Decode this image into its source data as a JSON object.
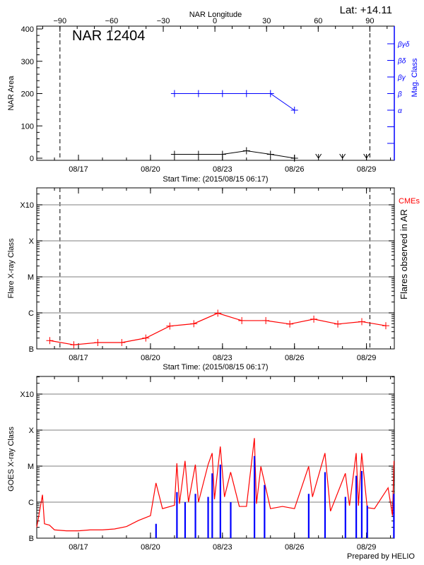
{
  "header": {
    "lat_label": "Lat: +14.11",
    "footer": "Prepared by HELIO"
  },
  "chart_data": [
    {
      "type": "line",
      "title": "NAR 12404",
      "xlabel": "Start Time: (2015/08/15 06:17)",
      "xlim": [
        "2015-08-15 06:17",
        "2015-08-30 03:50"
      ],
      "x_tick_labels": [
        "08/17",
        "08/20",
        "08/23",
        "08/26",
        "08/29"
      ],
      "top_axis": {
        "label": "NAR Longitude",
        "ticks": [
          -90,
          -60,
          -30,
          0,
          30,
          60,
          90
        ]
      },
      "limb_longitudes": [
        -90,
        90
      ],
      "ylabel": "NAR Area",
      "ylim": [
        0,
        400
      ],
      "y_ticks": [
        0,
        100,
        200,
        300,
        400
      ],
      "right_axis": {
        "label": "Mag. Class",
        "color": "#0000ff",
        "categories": [
          "α",
          "β",
          "βγ",
          "βδ",
          "βγδ"
        ]
      },
      "series": [
        {
          "color": "#000000",
          "axis": "left",
          "points": [
            {
              "x": "2015-08-21 00:00",
              "y": 12
            },
            {
              "x": "2015-08-22 00:00",
              "y": 12
            },
            {
              "x": "2015-08-23 00:00",
              "y": 12
            },
            {
              "x": "2015-08-24 00:00",
              "y": 23
            },
            {
              "x": "2015-08-25 00:00",
              "y": 12
            },
            {
              "x": "2015-08-26 00:00",
              "y": 0
            }
          ]
        },
        {
          "color": "#0000ff",
          "axis": "right",
          "points": [
            {
              "x": "2015-08-21 00:00",
              "y": "β"
            },
            {
              "x": "2015-08-22 00:00",
              "y": "β"
            },
            {
              "x": "2015-08-23 00:00",
              "y": "β"
            },
            {
              "x": "2015-08-24 00:00",
              "y": "β"
            },
            {
              "x": "2015-08-25 00:00",
              "y": "β"
            },
            {
              "x": "2015-08-26 00:00",
              "y": "α"
            }
          ]
        }
      ],
      "no_data_markers": [
        "2015-08-27 00:00",
        "2015-08-28 00:00",
        "2015-08-29 00:00"
      ]
    },
    {
      "type": "line",
      "xlabel": "Start Time: (2015/08/15 06:17)",
      "xlim": [
        "2015-08-15 06:17",
        "2015-08-30 03:50"
      ],
      "x_tick_labels": [
        "08/17",
        "08/20",
        "08/23",
        "08/26",
        "08/29"
      ],
      "limb_longitudes": [
        -90,
        90
      ],
      "ylabel": "Flare X-ray Class",
      "y_scale": "log",
      "y_ticks": [
        "B",
        "C",
        "M",
        "X",
        "X10"
      ],
      "grid": true,
      "right_label": "Flares observed in AR",
      "legend": {
        "label": "CMEs",
        "color": "#ff0000",
        "position": "top-right"
      },
      "series": [
        {
          "color": "#ff0000",
          "points": [
            {
              "x": "2015-08-15 19:20",
              "y": "B1.7"
            },
            {
              "x": "2015-08-16 19:20",
              "y": "B1.3"
            },
            {
              "x": "2015-08-17 19:20",
              "y": "B1.5"
            },
            {
              "x": "2015-08-18 19:20",
              "y": "B1.5"
            },
            {
              "x": "2015-08-19 19:20",
              "y": "B2.0"
            },
            {
              "x": "2015-08-20 19:20",
              "y": "B4.3"
            },
            {
              "x": "2015-08-21 19:20",
              "y": "B5.0"
            },
            {
              "x": "2015-08-22 19:20",
              "y": "B9.8"
            },
            {
              "x": "2015-08-23 19:20",
              "y": "B6.1"
            },
            {
              "x": "2015-08-24 19:20",
              "y": "B6.1"
            },
            {
              "x": "2015-08-25 19:20",
              "y": "B4.9"
            },
            {
              "x": "2015-08-26 19:20",
              "y": "B6.7"
            },
            {
              "x": "2015-08-27 19:20",
              "y": "B4.9"
            },
            {
              "x": "2015-08-28 19:20",
              "y": "B5.7"
            },
            {
              "x": "2015-08-29 19:20",
              "y": "B4.4"
            }
          ]
        }
      ]
    },
    {
      "type": "line",
      "xlim": [
        "2015-08-15 06:17",
        "2015-08-30 03:50"
      ],
      "x_tick_labels": [
        "08/17",
        "08/20",
        "08/23",
        "08/26",
        "08/29"
      ],
      "ylabel": "GOES X-ray Class",
      "y_scale": "log",
      "y_ticks": [
        "B",
        "C",
        "M",
        "X",
        "X10"
      ],
      "grid": true,
      "series": [
        {
          "color": "#ff0000",
          "style": "line",
          "points": [
            {
              "x": "2015-08-15 06:17",
              "y": "B2.0"
            },
            {
              "x": "2015-08-15 12:00",
              "y": "C1.6"
            },
            {
              "x": "2015-08-15 14:00",
              "y": "B2.5"
            },
            {
              "x": "2015-08-15 19:00",
              "y": "B2.3"
            },
            {
              "x": "2015-08-16 00:00",
              "y": "B1.7"
            },
            {
              "x": "2015-08-16 12:00",
              "y": "B1.6"
            },
            {
              "x": "2015-08-17 00:00",
              "y": "B1.6"
            },
            {
              "x": "2015-08-17 12:00",
              "y": "B1.7"
            },
            {
              "x": "2015-08-18 00:00",
              "y": "B1.7"
            },
            {
              "x": "2015-08-18 12:00",
              "y": "B1.8"
            },
            {
              "x": "2015-08-19 00:00",
              "y": "B2.1"
            },
            {
              "x": "2015-08-19 12:00",
              "y": "B3.1"
            },
            {
              "x": "2015-08-20 00:00",
              "y": "B4.2"
            },
            {
              "x": "2015-08-20 05:30",
              "y": "C3.4"
            },
            {
              "x": "2015-08-20 12:00",
              "y": "B6.6"
            },
            {
              "x": "2015-08-21 00:00",
              "y": "B8.2"
            },
            {
              "x": "2015-08-21 02:24",
              "y": "M1.2"
            },
            {
              "x": "2015-08-21 05:00",
              "y": "B9.0"
            },
            {
              "x": "2015-08-21 10:34",
              "y": "M1.4"
            },
            {
              "x": "2015-08-21 14:00",
              "y": "C1.0"
            },
            {
              "x": "2015-08-21 20:53",
              "y": "M1.1"
            },
            {
              "x": "2015-08-22 00:00",
              "y": "C1.0"
            },
            {
              "x": "2015-08-22 09:36",
              "y": "M1.1"
            },
            {
              "x": "2015-08-22 13:41",
              "y": "M2.3"
            },
            {
              "x": "2015-08-22 16:00",
              "y": "C1.2"
            },
            {
              "x": "2015-08-22 21:50",
              "y": "M3.5"
            },
            {
              "x": "2015-08-23 02:00",
              "y": "C1.4"
            },
            {
              "x": "2015-08-23 08:10",
              "y": "C6.8"
            },
            {
              "x": "2015-08-23 16:48",
              "y": "B7.6"
            },
            {
              "x": "2015-08-24 00:00",
              "y": "B7.6"
            },
            {
              "x": "2015-08-24 07:55",
              "y": "M6.0"
            },
            {
              "x": "2015-08-24 10:00",
              "y": "B9.0"
            },
            {
              "x": "2015-08-24 14:24",
              "y": "C9.8"
            },
            {
              "x": "2015-08-25 00:00",
              "y": "B6.6"
            },
            {
              "x": "2015-08-25 12:00",
              "y": "B7.6"
            },
            {
              "x": "2015-08-26 00:00",
              "y": "B6.6"
            },
            {
              "x": "2015-08-26 14:10",
              "y": "C9.8"
            },
            {
              "x": "2015-08-26 18:00",
              "y": "C1.4"
            },
            {
              "x": "2015-08-27 06:29",
              "y": "M2.3"
            },
            {
              "x": "2015-08-27 12:00",
              "y": "B5.6"
            },
            {
              "x": "2015-08-28 02:53",
              "y": "C6.3"
            },
            {
              "x": "2015-08-28 07:00",
              "y": "B8.0"
            },
            {
              "x": "2015-08-28 13:41",
              "y": "M2.3"
            },
            {
              "x": "2015-08-28 16:00",
              "y": "B8.0"
            },
            {
              "x": "2015-08-28 19:12",
              "y": "M2.3"
            },
            {
              "x": "2015-08-29 00:43",
              "y": "B7.0"
            },
            {
              "x": "2015-08-29 08:00",
              "y": "B6.6"
            },
            {
              "x": "2015-08-29 21:36",
              "y": "C2.5"
            },
            {
              "x": "2015-08-30 02:00",
              "y": "B4.2"
            },
            {
              "x": "2015-08-30 03:30",
              "y": "M1.4"
            }
          ]
        },
        {
          "color": "#0000ff",
          "style": "bars",
          "points": [
            {
              "x": "2015-08-20 05:30",
              "y": "B2.5"
            },
            {
              "x": "2015-08-21 02:24",
              "y": "C1.9"
            },
            {
              "x": "2015-08-21 10:34",
              "y": "C1.0"
            },
            {
              "x": "2015-08-21 20:53",
              "y": "C1.7"
            },
            {
              "x": "2015-08-22 09:36",
              "y": "C1.4"
            },
            {
              "x": "2015-08-22 13:41",
              "y": "C6.3"
            },
            {
              "x": "2015-08-22 21:50",
              "y": "M1.1"
            },
            {
              "x": "2015-08-23 08:10",
              "y": "C1.0"
            },
            {
              "x": "2015-08-24 07:55",
              "y": "M1.9"
            },
            {
              "x": "2015-08-24 18:00",
              "y": "C3.0"
            },
            {
              "x": "2015-08-26 14:10",
              "y": "C1.7"
            },
            {
              "x": "2015-08-27 06:29",
              "y": "C6.8"
            },
            {
              "x": "2015-08-28 02:53",
              "y": "C1.4"
            },
            {
              "x": "2015-08-28 13:41",
              "y": "C5.4"
            },
            {
              "x": "2015-08-28 19:12",
              "y": "C7.3"
            },
            {
              "x": "2015-08-29 00:43",
              "y": "B8.0"
            },
            {
              "x": "2015-08-30 03:20",
              "y": "C1.7"
            }
          ]
        }
      ]
    }
  ]
}
